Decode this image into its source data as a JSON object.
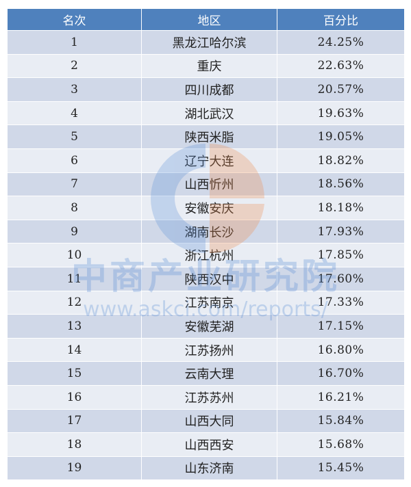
{
  "chart_data": {
    "type": "table",
    "columns": [
      "名次",
      "地区",
      "百分比"
    ],
    "rows": [
      {
        "rank": "1",
        "region": "黑龙江哈尔滨",
        "percent": "24.25%"
      },
      {
        "rank": "2",
        "region": "重庆",
        "percent": "22.63%"
      },
      {
        "rank": "3",
        "region": "四川成都",
        "percent": "20.57%"
      },
      {
        "rank": "4",
        "region": "湖北武汉",
        "percent": "19.63%"
      },
      {
        "rank": "5",
        "region": "陕西米脂",
        "percent": "19.05%"
      },
      {
        "rank": "6",
        "region": "辽宁大连",
        "percent": "18.82%"
      },
      {
        "rank": "7",
        "region": "山西忻州",
        "percent": "18.56%"
      },
      {
        "rank": "8",
        "region": "安徽安庆",
        "percent": "18.18%"
      },
      {
        "rank": "9",
        "region": "湖南长沙",
        "percent": "17.93%"
      },
      {
        "rank": "10",
        "region": "浙江杭州",
        "percent": "17.85%"
      },
      {
        "rank": "11",
        "region": "陕西汉中",
        "percent": "17.60%"
      },
      {
        "rank": "12",
        "region": "江苏南京",
        "percent": "17.33%"
      },
      {
        "rank": "13",
        "region": "安徽芜湖",
        "percent": "17.15%"
      },
      {
        "rank": "14",
        "region": "江苏扬州",
        "percent": "16.80%"
      },
      {
        "rank": "15",
        "region": "云南大理",
        "percent": "16.70%"
      },
      {
        "rank": "16",
        "region": "江苏苏州",
        "percent": "16.21%"
      },
      {
        "rank": "17",
        "region": "山西大同",
        "percent": "15.84%"
      },
      {
        "rank": "18",
        "region": "山西西安",
        "percent": "15.68%"
      },
      {
        "rank": "19",
        "region": "山东济南",
        "percent": "15.45%"
      }
    ]
  },
  "watermark": {
    "name": "中商产业研究院",
    "url": "www.askci.com/reports/",
    "logo_icon": "askci-logo-icon",
    "colors": {
      "blue": "#5b8fd6",
      "orange": "#f08a4b"
    }
  },
  "colors": {
    "header_bg": "#4f81bd",
    "row_odd": "#d0d8e8",
    "row_even": "#e9edf4"
  }
}
